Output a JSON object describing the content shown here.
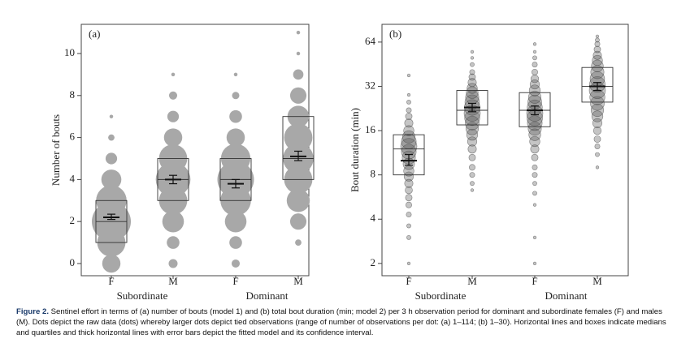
{
  "chart_data": [
    {
      "type": "dotbox",
      "panel_label": "(a)",
      "ylabel": "Number of bouts",
      "log_y": false,
      "categories": [
        "F",
        "M",
        "F",
        "M"
      ],
      "groups": [
        "Subordinate",
        "Dominant"
      ],
      "ylim": [
        -0.58,
        11.39
      ],
      "yticks": [
        0,
        2,
        4,
        6,
        8,
        10
      ],
      "dot_color": "#a8a8a8",
      "dot_stroke": "none",
      "max_radius": 24,
      "boxes": {
        "q1": [
          1,
          3,
          3,
          4
        ],
        "median": [
          2,
          4,
          4,
          5
        ],
        "q3": [
          3,
          5,
          5,
          7
        ]
      },
      "fit": {
        "mean": [
          2.2,
          4.0,
          3.8,
          5.1
        ],
        "lower": [
          2.1,
          3.8,
          3.6,
          4.9
        ],
        "upper": [
          2.35,
          4.2,
          4.0,
          5.35
        ]
      },
      "dots": [
        {
          "values": [
            0,
            1,
            2,
            3,
            4,
            5,
            6,
            7
          ],
          "counts": [
            25,
            60,
            114,
            70,
            30,
            10,
            3,
            1
          ]
        },
        {
          "values": [
            0,
            1,
            2,
            3,
            4,
            5,
            6,
            7,
            8,
            9
          ],
          "counts": [
            6,
            12,
            35,
            60,
            90,
            60,
            25,
            10,
            5,
            1
          ]
        },
        {
          "values": [
            0,
            1,
            2,
            3,
            4,
            5,
            6,
            7,
            8,
            9
          ],
          "counts": [
            5,
            12,
            35,
            70,
            100,
            65,
            25,
            12,
            4,
            1
          ]
        },
        {
          "values": [
            1,
            2,
            3,
            4,
            5,
            6,
            7,
            8,
            9,
            10,
            11
          ],
          "counts": [
            3,
            20,
            40,
            60,
            70,
            60,
            35,
            20,
            8,
            1,
            1
          ]
        }
      ]
    },
    {
      "type": "dotbox",
      "panel_label": "(b)",
      "ylabel": "Bout duration (min)",
      "log_y": true,
      "categories": [
        "F",
        "M",
        "F",
        "M"
      ],
      "groups": [
        "Subordinate",
        "Dominant"
      ],
      "ylim": [
        1.65,
        84.5
      ],
      "yticks": [
        2,
        4,
        8,
        16,
        32,
        64
      ],
      "dot_color": "rgba(90,90,90,0.35)",
      "dot_stroke": "rgba(60,60,60,0.6)",
      "max_radius": 10,
      "boxes": {
        "q1": [
          8,
          17.5,
          17,
          25
        ],
        "median": [
          12,
          22,
          22,
          32
        ],
        "q3": [
          15,
          30,
          29,
          43
        ]
      },
      "fit": {
        "mean": [
          10,
          23,
          22,
          32
        ],
        "lower": [
          9.3,
          21.5,
          20.5,
          30
        ],
        "upper": [
          11,
          24.5,
          23.5,
          34
        ]
      },
      "dots": [
        {
          "values": [
            2,
            3,
            3.6,
            4.3,
            5,
            5.6,
            6.3,
            7,
            7.8,
            8.5,
            9.5,
            10.5,
            11.5,
            12.5,
            13.5,
            14.5,
            16,
            18,
            20,
            22,
            25,
            28,
            38
          ],
          "counts": [
            1,
            2,
            2,
            3,
            4,
            5,
            6,
            8,
            10,
            12,
            15,
            20,
            25,
            30,
            25,
            18,
            12,
            8,
            5,
            3,
            2,
            1,
            1
          ]
        },
        {
          "values": [
            6.3,
            7,
            8,
            9,
            10.5,
            12,
            13.5,
            15,
            16.5,
            18,
            19.5,
            21,
            23,
            25,
            27,
            29,
            31,
            34,
            37,
            40,
            45,
            50,
            55
          ],
          "counts": [
            1,
            2,
            3,
            4,
            5,
            8,
            10,
            14,
            18,
            22,
            26,
            30,
            28,
            24,
            20,
            16,
            12,
            8,
            5,
            3,
            2,
            1,
            1
          ]
        },
        {
          "values": [
            2,
            3,
            5,
            6,
            7,
            8,
            9,
            10.5,
            12,
            13.5,
            15,
            16.5,
            18,
            19.5,
            21,
            23,
            25,
            27,
            30,
            33,
            36,
            40,
            45,
            50,
            55,
            62
          ],
          "counts": [
            1,
            1,
            1,
            2,
            2,
            3,
            3,
            5,
            8,
            12,
            16,
            20,
            25,
            28,
            30,
            26,
            22,
            18,
            14,
            10,
            7,
            4,
            3,
            2,
            1,
            1
          ]
        },
        {
          "values": [
            9,
            11,
            12.5,
            14,
            16,
            18,
            20,
            22,
            24.5,
            27,
            30,
            33,
            36,
            40,
            44,
            48,
            52,
            57,
            62,
            66,
            70
          ],
          "counts": [
            1,
            2,
            3,
            5,
            7,
            10,
            14,
            18,
            22,
            26,
            30,
            28,
            24,
            20,
            16,
            12,
            8,
            5,
            3,
            2,
            1
          ]
        }
      ]
    }
  ],
  "caption": {
    "label": "Figure 2.",
    "text": "Sentinel effort in terms of (a) number of bouts (model 1) and (b) total bout duration (min; model 2) per 3 h observation period for dominant and subordinate females (F) and males (M). Dots depict the raw data (dots) whereby larger dots depict tied observations (range of number of observations per dot: (a) 1–114; (b) 1–30). Horizontal lines and boxes indicate medians and quartiles and thick horizontal lines with error bars depict the fitted model and its confidence interval."
  }
}
